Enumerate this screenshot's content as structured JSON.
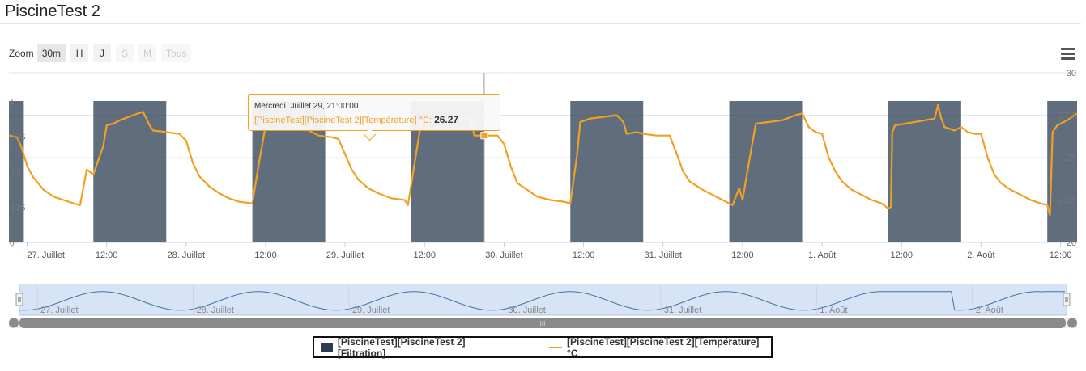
{
  "page": {
    "title": "PiscineTest 2"
  },
  "zoom": {
    "label": "Zoom",
    "buttons": [
      {
        "label": "30m",
        "state": "active"
      },
      {
        "label": "H",
        "state": "enabled"
      },
      {
        "label": "J",
        "state": "enabled"
      },
      {
        "label": "S",
        "state": "disabled"
      },
      {
        "label": "M",
        "state": "disabled"
      },
      {
        "label": "Tous",
        "state": "disabled"
      }
    ]
  },
  "menu": {
    "icon": "hamburger-menu-icon"
  },
  "colors": {
    "filtration": "#2b3c52",
    "temperature": "#f0a023",
    "navigator": "#4572a7",
    "navigator_fill": "#d6e4f5"
  },
  "tooltip": {
    "header": "Mercredi, Juillet 29, 21:00:00",
    "series": "[PiscineTest][PiscineTest 2][Température] °C",
    "value": "26.27"
  },
  "legend": {
    "filtration": "[PiscineTest][PiscineTest 2][Filtration]",
    "temperature": "[PiscineTest][PiscineTest 2][Température] °C"
  },
  "chart_data": {
    "type": "line",
    "x_labels": [
      "27. Juillet",
      "12:00",
      "28. Juillet",
      "12:00",
      "29. Juillet",
      "12:00",
      "30. Juillet",
      "12:00",
      "31. Juillet",
      "12:00",
      "1. Août",
      "12:00",
      "2. Août",
      "12:00"
    ],
    "x_hours": [
      0,
      12,
      24,
      36,
      48,
      60,
      72,
      84,
      96,
      108,
      120,
      132,
      144,
      156
    ],
    "x_range_hours": [
      -2.75,
      158.5
    ],
    "left_axis": {
      "ticks": [
        "1",
        "0.75",
        "0.5",
        "0.25",
        "0"
      ],
      "tick_values": [
        1,
        0.75,
        0.5,
        0.25,
        0
      ],
      "range": [
        0,
        1.2
      ]
    },
    "right_axis": {
      "ticks": [
        "30",
        "27.5",
        "25",
        "22.5",
        "20"
      ],
      "tick_values": [
        30,
        27.5,
        25,
        22.5,
        20
      ],
      "range": [
        20,
        30
      ]
    },
    "grid": true,
    "legend_position": "bottom-center",
    "series": [
      {
        "name": "[PiscineTest][PiscineTest 2][Filtration]",
        "kind": "area-step",
        "axis": "left",
        "on_intervals_hours": [
          [
            -2.75,
            -0.5
          ],
          [
            10,
            21
          ],
          [
            34,
            45
          ],
          [
            58,
            69
          ],
          [
            82,
            93
          ],
          [
            106,
            117
          ],
          [
            130,
            141
          ],
          [
            154,
            158.5
          ]
        ]
      },
      {
        "name": "[PiscineTest][PiscineTest 2][Température] °C",
        "kind": "line",
        "axis": "right",
        "points": [
          [
            -2.75,
            26.3
          ],
          [
            -1.5,
            26.2
          ],
          [
            -0.75,
            25.5
          ],
          [
            0,
            24.5
          ],
          [
            1,
            23.8
          ],
          [
            2.5,
            23.1
          ],
          [
            4,
            22.7
          ],
          [
            5.5,
            22.5
          ],
          [
            7,
            22.3
          ],
          [
            8,
            22.2
          ],
          [
            9,
            24.3
          ],
          [
            10,
            24
          ],
          [
            11.5,
            25.7
          ],
          [
            12,
            26.9
          ],
          [
            13,
            27
          ],
          [
            14,
            27.2
          ],
          [
            16,
            27.5
          ],
          [
            17.5,
            27.7
          ],
          [
            18.5,
            26.9
          ],
          [
            19,
            26.6
          ],
          [
            21,
            26.5
          ],
          [
            23,
            26.4
          ],
          [
            24,
            26
          ],
          [
            25,
            24.7
          ],
          [
            26,
            23.9
          ],
          [
            27.5,
            23.3
          ],
          [
            29,
            22.9
          ],
          [
            30.5,
            22.6
          ],
          [
            32,
            22.4
          ],
          [
            34,
            22.3
          ],
          [
            35,
            24.7
          ],
          [
            36,
            26.9
          ],
          [
            36.5,
            27
          ],
          [
            38,
            27.1
          ],
          [
            39,
            27.1
          ],
          [
            40,
            26.9
          ],
          [
            41.5,
            26.8
          ],
          [
            44,
            26.3
          ],
          [
            46,
            26.2
          ],
          [
            47,
            26.1
          ],
          [
            48,
            25.2
          ],
          [
            49,
            24.3
          ],
          [
            50,
            23.7
          ],
          [
            51.5,
            23.2
          ],
          [
            53,
            22.9
          ],
          [
            55,
            22.6
          ],
          [
            57,
            22.5
          ],
          [
            57.5,
            22.2
          ],
          [
            58.5,
            24.7
          ],
          [
            59.5,
            27.1
          ],
          [
            61,
            27.1
          ],
          [
            63,
            27.3
          ],
          [
            65,
            27.3
          ],
          [
            67,
            27.3
          ],
          [
            67.5,
            26.3
          ],
          [
            69,
            26.3
          ],
          [
            71,
            26.3
          ],
          [
            72,
            25.8
          ],
          [
            73,
            24.5
          ],
          [
            74,
            23.5
          ],
          [
            75.5,
            23.1
          ],
          [
            77,
            22.7
          ],
          [
            79,
            22.5
          ],
          [
            81,
            22.4
          ],
          [
            82,
            22.3
          ],
          [
            83,
            25.1
          ],
          [
            83.5,
            27.1
          ],
          [
            85,
            27.3
          ],
          [
            87,
            27.4
          ],
          [
            89,
            27.5
          ],
          [
            90,
            27.1
          ],
          [
            90.5,
            26.4
          ],
          [
            92,
            26.5
          ],
          [
            93,
            26.4
          ],
          [
            95,
            26.3
          ],
          [
            97,
            26.3
          ],
          [
            98,
            25.3
          ],
          [
            99,
            24.2
          ],
          [
            100,
            23.6
          ],
          [
            102,
            23.1
          ],
          [
            104,
            22.7
          ],
          [
            105.5,
            22.4
          ],
          [
            106.5,
            22.2
          ],
          [
            107.5,
            23.2
          ],
          [
            108,
            22.5
          ],
          [
            109,
            24.8
          ],
          [
            110,
            27
          ],
          [
            112,
            27.1
          ],
          [
            114,
            27.2
          ],
          [
            116,
            27.5
          ],
          [
            117,
            27.6
          ],
          [
            118,
            26.8
          ],
          [
            119,
            26.5
          ],
          [
            120,
            26.4
          ],
          [
            121,
            25
          ],
          [
            122,
            24.2
          ],
          [
            123,
            23.6
          ],
          [
            124.5,
            23.1
          ],
          [
            126,
            22.8
          ],
          [
            127.5,
            22.5
          ],
          [
            129,
            22.3
          ],
          [
            130,
            22
          ],
          [
            130.4,
            22.1
          ],
          [
            130.6,
            26.5
          ],
          [
            131,
            26.9
          ],
          [
            132.5,
            27
          ],
          [
            134,
            27.1
          ],
          [
            135.5,
            27.2
          ],
          [
            137,
            27.3
          ],
          [
            137.5,
            28.1
          ],
          [
            138,
            27.3
          ],
          [
            138.5,
            26.8
          ],
          [
            140,
            26.6
          ],
          [
            141,
            26.8
          ],
          [
            142,
            26.5
          ],
          [
            143,
            26.4
          ],
          [
            144,
            26.4
          ],
          [
            145,
            25
          ],
          [
            146,
            24
          ],
          [
            147,
            23.5
          ],
          [
            148.5,
            23.1
          ],
          [
            150,
            22.8
          ],
          [
            151.5,
            22.5
          ],
          [
            153,
            22.3
          ],
          [
            154,
            22.2
          ],
          [
            154.4,
            21.6
          ],
          [
            154.8,
            26.5
          ],
          [
            155.5,
            26.9
          ],
          [
            157,
            27.2
          ],
          [
            158.5,
            27.6
          ]
        ]
      }
    ],
    "navigator": {
      "x_labels": [
        "27. Juillet",
        "28. Juillet",
        "29. Juillet",
        "30. Juillet",
        "31. Juillet",
        "1. Août",
        "2. Août"
      ],
      "scrollbar_label": "III"
    }
  }
}
